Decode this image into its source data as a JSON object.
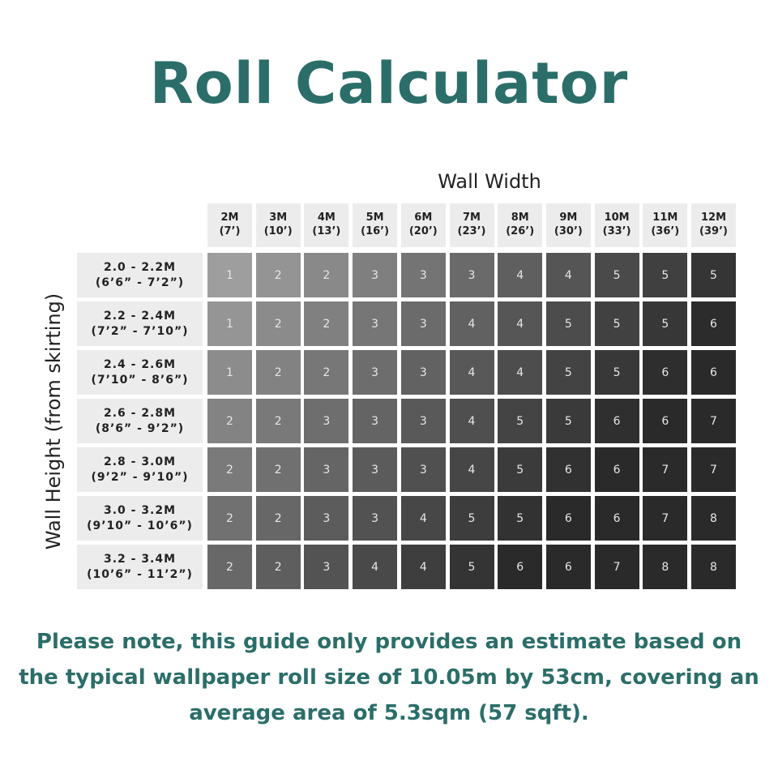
{
  "title": "Roll Calculator",
  "x_label": "Wall Width",
  "y_label": "Wall Height (from skirting)",
  "columns": [
    [
      "2M",
      "(7’)"
    ],
    [
      "3M",
      "(10’)"
    ],
    [
      "4M",
      "(13’)"
    ],
    [
      "5M",
      "(16’)"
    ],
    [
      "6M",
      "(20’)"
    ],
    [
      "7M",
      "(23’)"
    ],
    [
      "8M",
      "(26’)"
    ],
    [
      "9M",
      "(30’)"
    ],
    [
      "10M",
      "(33’)"
    ],
    [
      "11M",
      "(36’)"
    ],
    [
      "12M",
      "(39’)"
    ]
  ],
  "rows": [
    {
      "label": [
        "2.0 - 2.2M",
        "(6’6” - 7’2”)"
      ],
      "cells": [
        1,
        2,
        2,
        3,
        3,
        3,
        4,
        4,
        5,
        5,
        5
      ]
    },
    {
      "label": [
        "2.2 - 2.4M",
        "(7’2” - 7’10”)"
      ],
      "cells": [
        1,
        2,
        2,
        3,
        3,
        4,
        4,
        5,
        5,
        5,
        6
      ]
    },
    {
      "label": [
        "2.4 - 2.6M",
        "(7’10” - 8’6”)"
      ],
      "cells": [
        1,
        2,
        2,
        3,
        3,
        4,
        4,
        5,
        5,
        6,
        6
      ]
    },
    {
      "label": [
        "2.6 - 2.8M",
        "(8’6” - 9’2”)"
      ],
      "cells": [
        2,
        2,
        3,
        3,
        3,
        4,
        5,
        5,
        6,
        6,
        7
      ]
    },
    {
      "label": [
        "2.8 - 3.0M",
        "(9’2” - 9’10”)"
      ],
      "cells": [
        2,
        2,
        3,
        3,
        3,
        4,
        5,
        6,
        6,
        7,
        7
      ]
    },
    {
      "label": [
        "3.0 - 3.2M",
        "(9’10” - 10’6”)"
      ],
      "cells": [
        2,
        2,
        3,
        3,
        4,
        5,
        5,
        6,
        6,
        7,
        8
      ]
    },
    {
      "label": [
        "3.2 - 3.4M",
        "(10’6” - 11’2”)"
      ],
      "cells": [
        2,
        2,
        3,
        4,
        4,
        5,
        6,
        6,
        7,
        8,
        8
      ]
    }
  ],
  "note": [
    "Please note, this guide only provides an estimate based on",
    "the typical wallpaper roll size of 10.05m by 53cm, covering an",
    "average area of 5.3sqm (57 sqft)."
  ]
}
